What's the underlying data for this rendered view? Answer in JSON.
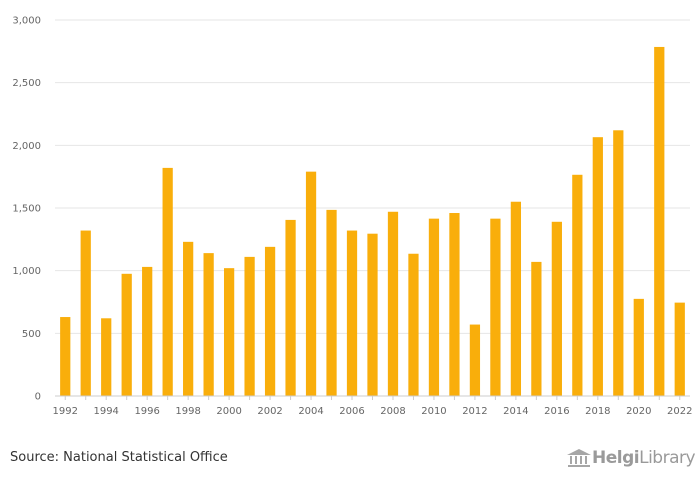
{
  "chart_data": {
    "type": "bar",
    "categories": [
      "1992",
      "1993",
      "1994",
      "1995",
      "1996",
      "1997",
      "1998",
      "1999",
      "2000",
      "2001",
      "2002",
      "2003",
      "2004",
      "2005",
      "2006",
      "2007",
      "2008",
      "2009",
      "2010",
      "2011",
      "2012",
      "2013",
      "2014",
      "2015",
      "2016",
      "2017",
      "2018",
      "2019",
      "2020",
      "2021",
      "2022"
    ],
    "values": [
      630,
      1320,
      620,
      975,
      1030,
      1820,
      1230,
      1140,
      1020,
      1110,
      1190,
      1405,
      1790,
      1485,
      1320,
      1295,
      1470,
      1135,
      1415,
      1460,
      570,
      1415,
      1550,
      1070,
      1390,
      1765,
      2065,
      2120,
      775,
      2785,
      745
    ],
    "x_tick_labels": [
      "1992",
      "1994",
      "1996",
      "1998",
      "2000",
      "2002",
      "2004",
      "2006",
      "2008",
      "2010",
      "2012",
      "2014",
      "2016",
      "2018",
      "2020",
      "2022"
    ],
    "y_ticks": [
      0,
      500,
      1000,
      1500,
      2000,
      2500,
      3000
    ],
    "y_tick_labels": [
      "0",
      "500",
      "1,000",
      "1,500",
      "2,000",
      "2,500",
      "3,000"
    ],
    "ylim": [
      0,
      3000
    ],
    "grid": true,
    "colors": {
      "bar": "#F9AE0B",
      "grid": "#E6E6E6",
      "axis": "#CCCCCC"
    }
  },
  "footer": {
    "source": "Source: National Statistical Office",
    "logo_bold": "Helgi",
    "logo_regular": "Library"
  }
}
